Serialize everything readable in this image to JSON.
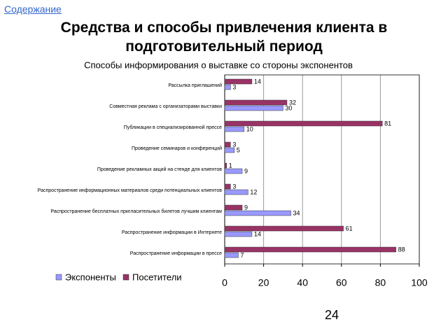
{
  "nav_link": "Содержание",
  "header": {
    "title": "Средства и способы привлечения клиента в подготовительный период"
  },
  "page_number": "24",
  "chart_data": {
    "type": "hbar",
    "title": "Способы информирования  о выставке со стороны  экспонентов",
    "categories": [
      "Рассылка приглашений",
      "Совместная реклама с организаторами выставки",
      "Публикации в специализированной прессе",
      "Проведение семинаров и конференций",
      "Проведение рекламных акций на стенде для клиентов",
      "Распространение информационных материалов среди потенциальных клиентов",
      "Распространение бесплатных пригласительных билетов лучшим клиентам",
      "Распространение информации в Интернете",
      "Распространение информации в прессе"
    ],
    "series": [
      {
        "name": "Экспоненты",
        "color": "#9999ff",
        "values": [
          3,
          30,
          10,
          5,
          9,
          12,
          34,
          14,
          7
        ]
      },
      {
        "name": "Посетители",
        "color": "#993366",
        "values": [
          14,
          32,
          81,
          3,
          1,
          3,
          9,
          61,
          88
        ]
      }
    ],
    "xlim": [
      0,
      100
    ],
    "xticks": [
      0,
      20,
      40,
      60,
      80,
      100
    ],
    "grid": true,
    "legend": "bottom-left"
  }
}
